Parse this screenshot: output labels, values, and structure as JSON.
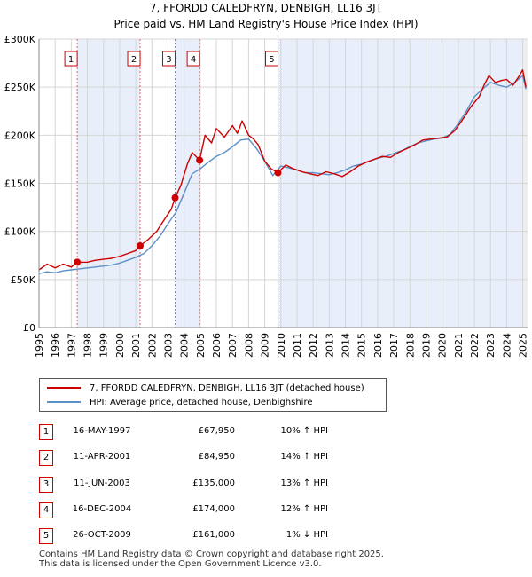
{
  "title_line1": "7, FFORDD CALEDFRYN, DENBIGH, LL16 3JT",
  "title_line2": "Price paid vs. HM Land Registry's House Price Index (HPI)",
  "chart_data": {
    "type": "line",
    "title": "7, FFORDD CALEDFRYN, DENBIGH, LL16 3JT — Price paid vs. HM Land Registry's House Price Index (HPI)",
    "xlim": [
      1995.0,
      2025.3
    ],
    "ylim": [
      0,
      300000
    ],
    "y_ticks": [
      0,
      50000,
      100000,
      150000,
      200000,
      250000,
      300000
    ],
    "y_tick_labels": [
      "£0",
      "£50K",
      "£100K",
      "£150K",
      "£200K",
      "£250K",
      "£300K"
    ],
    "x_ticks": [
      1995,
      1996,
      1997,
      1998,
      1999,
      2000,
      2001,
      2002,
      2003,
      2004,
      2005,
      2006,
      2007,
      2008,
      2009,
      2010,
      2011,
      2012,
      2013,
      2014,
      2015,
      2016,
      2017,
      2018,
      2019,
      2020,
      2021,
      2022,
      2023,
      2024,
      2025
    ],
    "x_tick_labels": [
      "1995",
      "1996",
      "1997",
      "1998",
      "1999",
      "2000",
      "2001",
      "2002",
      "2003",
      "2004",
      "2005",
      "2006",
      "2007",
      "2008",
      "2009",
      "2010",
      "2011",
      "2012",
      "2013",
      "2014",
      "2015",
      "2016",
      "2017",
      "2018",
      "2019",
      "2020",
      "2021",
      "2022",
      "2023",
      "2024",
      "2025"
    ],
    "grid": true,
    "series": [
      {
        "name": "7, FFORDD CALEDFRYN, DENBIGH, LL16 3JT (detached house)",
        "color": "#cc0000",
        "x": [
          1995.0,
          1995.5,
          1996.0,
          1996.5,
          1997.0,
          1997.37,
          1998.0,
          1998.5,
          1999.0,
          1999.5,
          2000.0,
          2000.5,
          2001.0,
          2001.27,
          2001.8,
          2002.3,
          2002.8,
          2003.2,
          2003.44,
          2003.8,
          2004.2,
          2004.5,
          2004.96,
          2005.3,
          2005.7,
          2006.0,
          2006.5,
          2007.0,
          2007.3,
          2007.6,
          2008.0,
          2008.3,
          2008.6,
          2009.0,
          2009.4,
          2009.82,
          2010.3,
          2010.8,
          2011.3,
          2011.8,
          2012.3,
          2012.8,
          2013.3,
          2013.8,
          2014.3,
          2014.8,
          2015.3,
          2015.8,
          2016.3,
          2016.8,
          2017.3,
          2017.8,
          2018.3,
          2018.8,
          2019.3,
          2019.8,
          2020.3,
          2020.8,
          2021.3,
          2021.8,
          2022.3,
          2022.6,
          2022.9,
          2023.3,
          2023.7,
          2024.0,
          2024.4,
          2024.8,
          2025.0,
          2025.2
        ],
        "values": [
          60000,
          66000,
          62000,
          66000,
          63000,
          67950,
          68000,
          70000,
          71000,
          72000,
          74000,
          77000,
          80000,
          84950,
          92000,
          100000,
          113000,
          123000,
          135000,
          148000,
          170000,
          182000,
          174000,
          200000,
          192000,
          207000,
          198000,
          210000,
          202000,
          215000,
          200000,
          196000,
          190000,
          173000,
          165000,
          161000,
          169000,
          165000,
          162000,
          160000,
          158000,
          162000,
          160000,
          157000,
          162000,
          168000,
          172000,
          175000,
          178000,
          177000,
          182000,
          186000,
          190000,
          195000,
          196000,
          197000,
          198000,
          205000,
          217000,
          230000,
          240000,
          252000,
          262000,
          255000,
          257000,
          258000,
          252000,
          262000,
          268000,
          250000
        ]
      },
      {
        "name": "HPI: Average price, detached house, Denbighshire",
        "color": "#5b8fc7",
        "x": [
          1995.0,
          1995.5,
          1996.0,
          1996.5,
          1997.0,
          1997.5,
          1998.0,
          1998.5,
          1999.0,
          1999.5,
          2000.0,
          2000.5,
          2001.0,
          2001.5,
          2002.0,
          2002.5,
          2003.0,
          2003.5,
          2004.0,
          2004.5,
          2005.0,
          2005.5,
          2006.0,
          2006.5,
          2007.0,
          2007.5,
          2008.0,
          2008.5,
          2009.0,
          2009.5,
          2010.0,
          2010.5,
          2011.0,
          2011.5,
          2012.0,
          2012.5,
          2013.0,
          2013.5,
          2014.0,
          2014.5,
          2015.0,
          2015.5,
          2016.0,
          2016.5,
          2017.0,
          2017.5,
          2018.0,
          2018.5,
          2019.0,
          2019.5,
          2020.0,
          2020.5,
          2021.0,
          2021.5,
          2022.0,
          2022.5,
          2023.0,
          2023.5,
          2024.0,
          2024.5,
          2025.0,
          2025.2
        ],
        "values": [
          56000,
          58000,
          57000,
          59000,
          60000,
          61000,
          62000,
          63000,
          64000,
          65000,
          67000,
          70000,
          73000,
          77000,
          85000,
          95000,
          108000,
          120000,
          140000,
          160000,
          165000,
          172000,
          178000,
          182000,
          188000,
          195000,
          196000,
          186000,
          173000,
          158000,
          168000,
          166000,
          164000,
          161000,
          161000,
          160000,
          159000,
          161000,
          164000,
          168000,
          170000,
          173000,
          176000,
          178000,
          181000,
          184000,
          188000,
          192000,
          194000,
          196000,
          197000,
          201000,
          212000,
          225000,
          240000,
          248000,
          255000,
          252000,
          250000,
          255000,
          262000,
          248000
        ]
      }
    ],
    "sales": [
      {
        "label": "1",
        "x": 1997.37,
        "value": 67950
      },
      {
        "label": "2",
        "x": 2001.27,
        "value": 84950
      },
      {
        "label": "3",
        "x": 2003.44,
        "value": 135000
      },
      {
        "label": "4",
        "x": 2004.96,
        "value": 174000
      },
      {
        "label": "5",
        "x": 2009.82,
        "value": 161000
      }
    ]
  },
  "legend": {
    "property_label": "7, FFORDD CALEDFRYN, DENBIGH, LL16 3JT (detached house)",
    "hpi_label": "HPI: Average price, detached house, Denbighshire",
    "property_color": "#cc0000",
    "hpi_color": "#5b8fc7"
  },
  "transactions": [
    {
      "num": "1",
      "date": "16-MAY-1997",
      "price": "£67,950",
      "hpi": "10% ↑ HPI"
    },
    {
      "num": "2",
      "date": "11-APR-2001",
      "price": "£84,950",
      "hpi": "14% ↑ HPI"
    },
    {
      "num": "3",
      "date": "11-JUN-2003",
      "price": "£135,000",
      "hpi": "13% ↑ HPI"
    },
    {
      "num": "4",
      "date": "16-DEC-2004",
      "price": "£174,000",
      "hpi": "12% ↑ HPI"
    },
    {
      "num": "5",
      "date": "26-OCT-2009",
      "price": "£161,000",
      "hpi": "1% ↓ HPI"
    }
  ],
  "footer_line1": "Contains HM Land Registry data © Crown copyright and database right 2025.",
  "footer_line2": "This data is licensed under the Open Government Licence v3.0."
}
